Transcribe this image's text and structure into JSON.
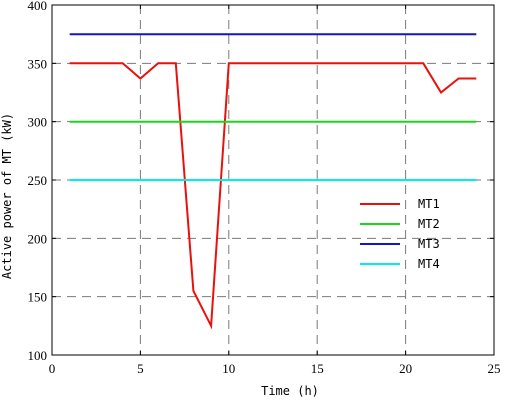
{
  "chart_data": {
    "type": "line",
    "xlabel": "Time (h)",
    "ylabel": "Active power of MT  (kW)",
    "xlim": [
      0,
      25
    ],
    "ylim": [
      100,
      400
    ],
    "xticks": [
      0,
      5,
      10,
      15,
      20,
      25
    ],
    "yticks": [
      100,
      150,
      200,
      250,
      300,
      350,
      400
    ],
    "grid": true,
    "legend_position": "right-center",
    "series": [
      {
        "name": "MT1",
        "color": "#e8120c",
        "x": [
          1,
          2,
          3,
          4,
          5,
          6,
          7,
          8,
          9,
          10,
          11,
          12,
          13,
          14,
          15,
          16,
          17,
          18,
          19,
          20,
          21,
          22,
          23,
          24
        ],
        "y": [
          350,
          350,
          350,
          350,
          337,
          350,
          350,
          155,
          125,
          350,
          350,
          350,
          350,
          350,
          350,
          350,
          350,
          350,
          350,
          350,
          350,
          325,
          337,
          337
        ]
      },
      {
        "name": "MT2",
        "color": "#18d818",
        "x": [
          1,
          24
        ],
        "y": [
          300,
          300
        ]
      },
      {
        "name": "MT3",
        "color": "#1414c8",
        "x": [
          1,
          24
        ],
        "y": [
          375,
          375
        ]
      },
      {
        "name": "MT4",
        "color": "#00eeee",
        "x": [
          1,
          24
        ],
        "y": [
          250,
          250
        ]
      }
    ]
  }
}
